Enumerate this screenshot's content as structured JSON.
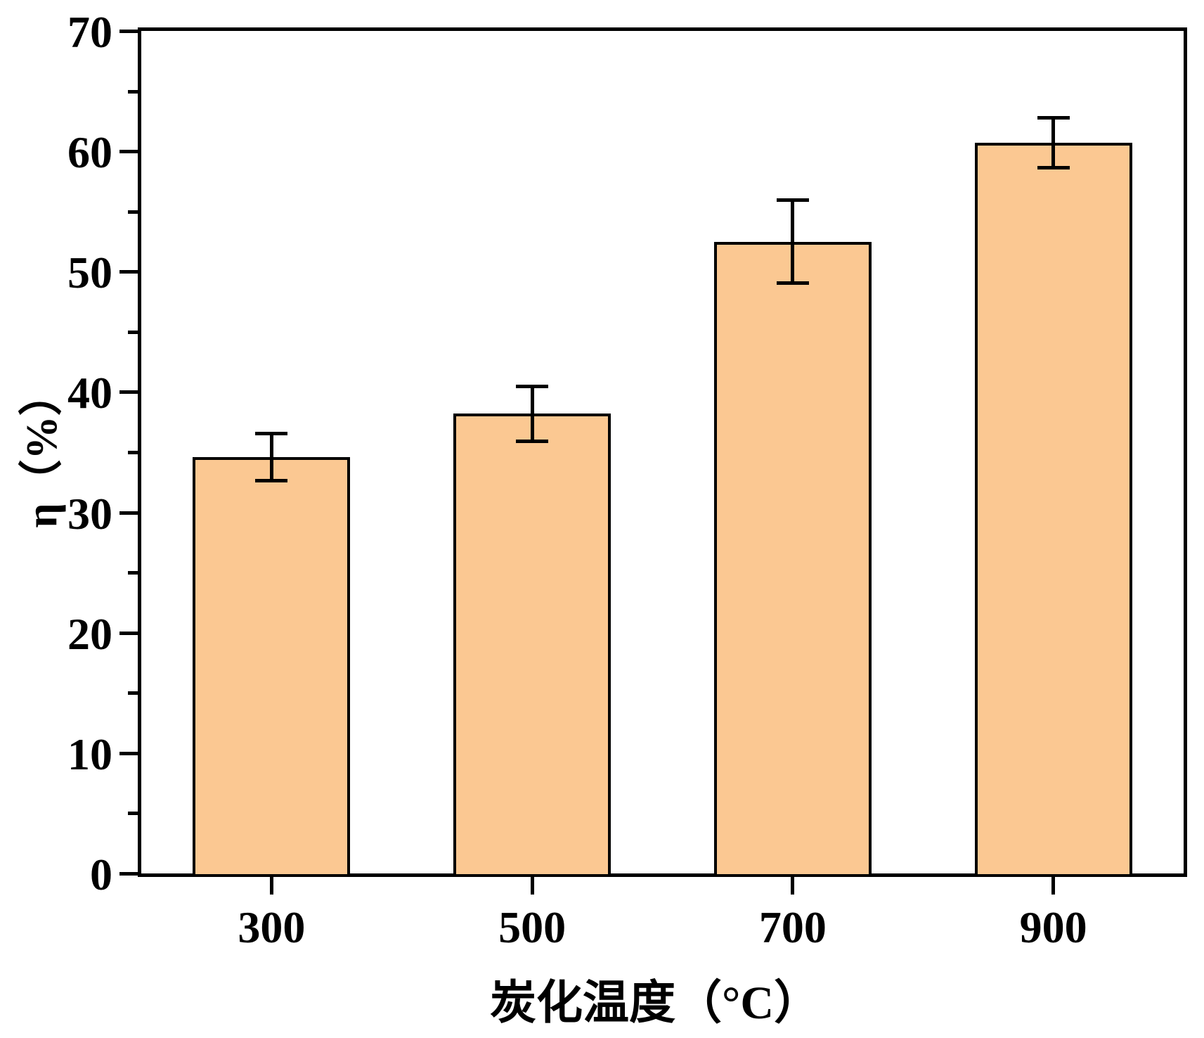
{
  "figure": {
    "background_color": "#ffffff",
    "text_color": "#000000"
  },
  "chart_data": {
    "type": "bar",
    "title": "",
    "xlabel": "炭化温度（°C）",
    "ylabel": "η（%）",
    "categories": [
      "300",
      "500",
      "700",
      "900"
    ],
    "series": [
      {
        "name": "η (%)",
        "values": [
          34.6,
          38.2,
          52.5,
          60.7
        ],
        "error_bars": [
          2.0,
          2.3,
          3.5,
          2.1
        ]
      }
    ],
    "ylim": [
      0,
      70
    ],
    "y_major_ticks": [
      0,
      10,
      20,
      30,
      40,
      50,
      60,
      70
    ],
    "y_minor_ticks": [
      5,
      15,
      25,
      35,
      45,
      55,
      65
    ],
    "grid": false,
    "legend": "none",
    "plot_frame": "full-box",
    "tick_direction": "out",
    "bar_fill_color": "#FBC892",
    "bar_edge_color": "#000000",
    "error_bar_color": "#000000",
    "axis_color": "#000000"
  }
}
